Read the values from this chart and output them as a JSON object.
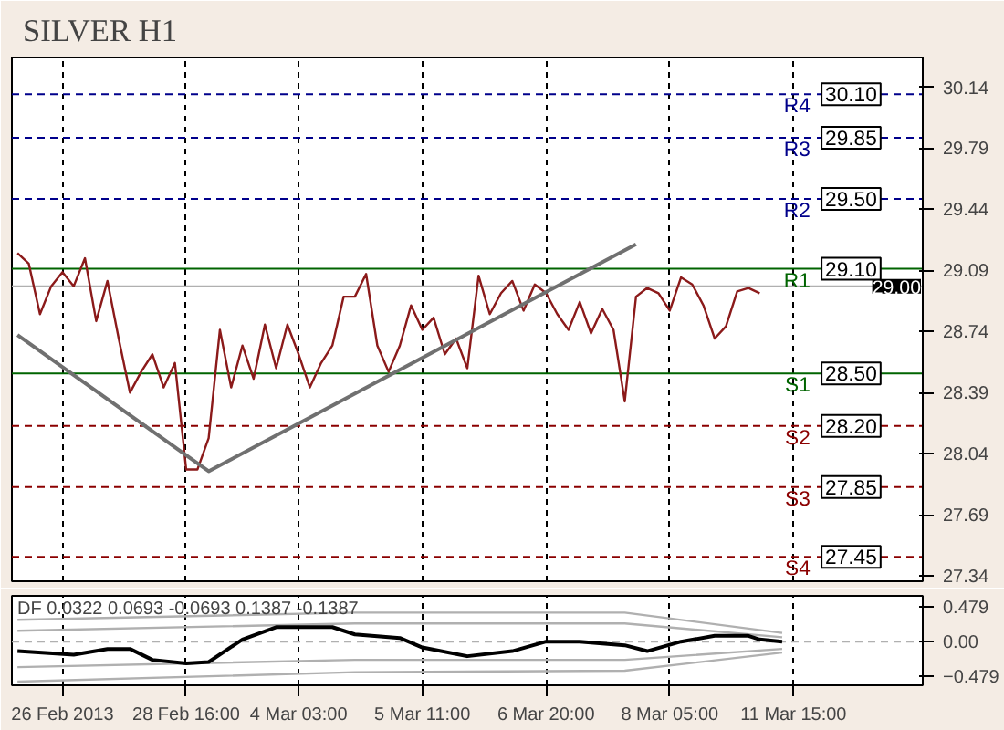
{
  "chart_data": [
    {
      "type": "line",
      "title": "SILVER H1",
      "ylim": [
        27.31,
        30.31
      ],
      "categories": [
        null,
        null,
        null,
        null,
        null,
        null,
        null,
        null,
        null,
        null,
        null,
        null,
        null,
        null,
        null,
        null,
        null,
        null,
        null,
        null,
        null,
        null,
        null,
        null,
        null,
        null,
        null,
        null,
        null,
        null,
        null,
        null,
        null,
        null,
        null,
        null,
        null,
        null,
        null,
        null,
        null,
        null,
        null,
        null,
        null,
        null,
        null,
        null,
        null,
        null,
        null,
        null,
        null,
        null,
        null,
        null,
        null,
        null,
        null,
        null,
        null,
        null,
        null,
        null,
        null,
        null,
        null,
        null,
        null,
        null,
        null,
        null,
        null,
        null,
        null,
        null,
        null,
        null,
        null,
        null,
        null
      ],
      "yticks": [
        30.14,
        29.79,
        29.44,
        29.09,
        28.74,
        28.39,
        28.04,
        27.69,
        27.34
      ],
      "grid": "x",
      "series": [
        {
          "color": "#8b1a1a",
          "values": [
            29.19,
            29.13,
            28.84,
            29.0,
            29.08,
            29.0,
            29.16,
            28.8,
            29.03,
            28.7,
            28.39,
            28.51,
            28.61,
            28.42,
            28.56,
            27.95,
            27.95,
            28.13,
            28.75,
            28.42,
            28.66,
            28.47,
            28.78,
            28.53,
            28.78,
            28.61,
            28.42,
            28.56,
            28.66,
            28.94,
            28.94,
            29.07,
            28.66,
            28.51,
            28.66,
            28.89,
            28.75,
            28.82,
            28.61,
            28.7,
            28.53,
            29.06,
            28.84,
            28.96,
            29.03,
            28.86,
            29.01,
            28.96,
            28.84,
            28.75,
            28.91,
            28.73,
            28.87,
            28.75,
            28.34,
            28.94,
            28.99,
            28.96,
            28.86,
            29.05,
            29.01,
            28.89,
            28.7,
            28.77,
            28.97,
            28.99,
            28.96,
            null,
            null,
            null,
            null,
            null,
            null,
            null,
            null,
            null,
            null,
            null,
            null,
            null,
            null
          ]
        },
        {
          "color": "#707070",
          "values": [
            28.72,
            null,
            null,
            null,
            null,
            null,
            null,
            null,
            null,
            null,
            null,
            null,
            null,
            null,
            null,
            null,
            null,
            27.94,
            null,
            null,
            null,
            null,
            null,
            null,
            null,
            null,
            null,
            null,
            null,
            null,
            null,
            null,
            null,
            null,
            null,
            null,
            null,
            null,
            null,
            null,
            null,
            null,
            null,
            null,
            null,
            null,
            null,
            null,
            null,
            null,
            null,
            null,
            null,
            null,
            null,
            29.24,
            null,
            null,
            null,
            null,
            null,
            null,
            null,
            null,
            null,
            null,
            null,
            null,
            null,
            null,
            null,
            null,
            null,
            null,
            null,
            null,
            null,
            null,
            null,
            null,
            null
          ]
        }
      ],
      "ref_lines": [
        {
          "axis": "y",
          "value": 30.1,
          "label": "R4",
          "color": "#00008b",
          "line_style": "dashed"
        },
        {
          "axis": "y",
          "value": 29.85,
          "label": "R3",
          "color": "#00008b",
          "line_style": "dashed"
        },
        {
          "axis": "y",
          "value": 29.5,
          "label": "R2",
          "color": "#00008b",
          "line_style": "dashed"
        },
        {
          "axis": "y",
          "value": 29.1,
          "label": "R1",
          "color": "#006400",
          "line_style": "solid"
        },
        {
          "axis": "y",
          "value": 29.0,
          "label": "29.00",
          "color": "#b0b0b0",
          "line_style": "solid"
        },
        {
          "axis": "y",
          "value": 28.5,
          "label": "S1",
          "color": "#006400",
          "line_style": "solid"
        },
        {
          "axis": "y",
          "value": 28.2,
          "label": "S2",
          "color": "#8b0000",
          "line_style": "dashed"
        },
        {
          "axis": "y",
          "value": 27.85,
          "label": "S3",
          "color": "#8b0000",
          "line_style": "dashed"
        },
        {
          "axis": "y",
          "value": 27.45,
          "label": "S4",
          "color": "#8b0000",
          "line_style": "dashed"
        }
      ],
      "annotations": [
        {
          "text": "30.10",
          "y": 30.1
        },
        {
          "text": "29.85",
          "y": 29.85
        },
        {
          "text": "29.50",
          "y": 29.5
        },
        {
          "text": "29.10",
          "y": 29.1
        },
        {
          "text": "28.50",
          "y": 28.5
        },
        {
          "text": "28.20",
          "y": 28.2
        },
        {
          "text": "27.85",
          "y": 27.85
        },
        {
          "text": "27.45",
          "y": 27.45
        }
      ]
    },
    {
      "type": "line",
      "ylim": [
        -0.6,
        0.63
      ],
      "categories": [
        null,
        null,
        null,
        null,
        "26 Feb 2013",
        null,
        null,
        null,
        null,
        null,
        null,
        null,
        null,
        null,
        null,
        "28 Feb 16:00",
        null,
        null,
        null,
        null,
        null,
        null,
        null,
        null,
        null,
        "4 Mar 03:00",
        null,
        null,
        null,
        null,
        null,
        null,
        null,
        null,
        null,
        null,
        "5 Mar 11:00",
        null,
        null,
        null,
        null,
        null,
        null,
        null,
        null,
        null,
        null,
        "6 Mar 20:00",
        null,
        null,
        null,
        null,
        null,
        null,
        null,
        null,
        null,
        null,
        "8 Mar 05:00",
        null,
        null,
        null,
        null,
        null,
        null,
        null,
        null,
        null,
        null,
        "11 Mar 15:00",
        null,
        null,
        null,
        null,
        null,
        null,
        null,
        null,
        null,
        null,
        null
      ],
      "yticks": [
        0.479,
        {
          "value": 0,
          "label": "0.00"
        },
        -0.479
      ],
      "grid": "x",
      "annotations": [
        "DF 0.0322 0.0693 -0.0693 0.1387 -0.1387"
      ],
      "series": [
        {
          "color": "#b0b0b0",
          "values": [
            0.3,
            null,
            null,
            null,
            null,
            null,
            null,
            null,
            null,
            null,
            null,
            null,
            null,
            null,
            null,
            null,
            null,
            null,
            null,
            null,
            null,
            null,
            null,
            null,
            null,
            null,
            null,
            null,
            null,
            null,
            0.4,
            null,
            null,
            null,
            null,
            null,
            null,
            null,
            null,
            null,
            null,
            null,
            null,
            null,
            null,
            null,
            null,
            null,
            null,
            null,
            null,
            null,
            null,
            null,
            0.4,
            null,
            null,
            null,
            null,
            null,
            null,
            null,
            null,
            null,
            null,
            null,
            null,
            null,
            0.12,
            null,
            null,
            null,
            null,
            null,
            null,
            null,
            null,
            null,
            null,
            null,
            null
          ]
        },
        {
          "color": "#b0b0b0",
          "values": [
            0.15,
            null,
            null,
            null,
            null,
            null,
            null,
            null,
            null,
            null,
            null,
            null,
            null,
            null,
            null,
            null,
            null,
            null,
            null,
            null,
            null,
            null,
            null,
            null,
            null,
            null,
            null,
            null,
            null,
            null,
            0.25,
            null,
            null,
            null,
            null,
            null,
            null,
            null,
            null,
            null,
            null,
            null,
            null,
            null,
            null,
            null,
            null,
            null,
            null,
            null,
            null,
            null,
            null,
            null,
            0.25,
            null,
            null,
            null,
            null,
            null,
            null,
            null,
            null,
            null,
            null,
            null,
            null,
            null,
            0.06,
            null,
            null,
            null,
            null,
            null,
            null,
            null,
            null,
            null,
            null,
            null,
            null
          ]
        },
        {
          "color": "#b0b0b0",
          "values": [
            -0.35,
            null,
            null,
            null,
            null,
            null,
            null,
            null,
            null,
            null,
            null,
            null,
            null,
            null,
            null,
            null,
            null,
            null,
            null,
            null,
            null,
            null,
            null,
            null,
            null,
            null,
            null,
            null,
            null,
            null,
            -0.25,
            null,
            null,
            null,
            null,
            null,
            null,
            null,
            null,
            null,
            null,
            null,
            null,
            null,
            null,
            null,
            null,
            null,
            null,
            null,
            null,
            null,
            null,
            null,
            -0.25,
            null,
            null,
            null,
            null,
            null,
            null,
            null,
            null,
            null,
            null,
            null,
            null,
            null,
            -0.1,
            null,
            null,
            null,
            null,
            null,
            null,
            null,
            null,
            null,
            null,
            null,
            null
          ]
        },
        {
          "color": "#b0b0b0",
          "values": [
            -0.55,
            null,
            null,
            null,
            null,
            null,
            null,
            null,
            null,
            null,
            null,
            null,
            null,
            null,
            null,
            null,
            null,
            null,
            null,
            null,
            null,
            null,
            null,
            null,
            null,
            null,
            null,
            null,
            null,
            null,
            -0.42,
            null,
            null,
            null,
            null,
            null,
            null,
            null,
            null,
            null,
            null,
            null,
            null,
            null,
            null,
            null,
            null,
            null,
            null,
            null,
            null,
            null,
            null,
            null,
            -0.4,
            null,
            null,
            null,
            null,
            null,
            null,
            null,
            null,
            null,
            null,
            null,
            null,
            null,
            -0.15,
            null,
            null,
            null,
            null,
            null,
            null,
            null,
            null,
            null,
            null,
            null,
            null
          ]
        },
        {
          "color": "#000000",
          "values": [
            -0.13,
            null,
            null,
            null,
            null,
            -0.18,
            null,
            null,
            -0.1,
            null,
            -0.1,
            null,
            -0.25,
            null,
            null,
            -0.3,
            null,
            -0.28,
            null,
            null,
            0.03,
            null,
            null,
            0.2,
            null,
            null,
            null,
            null,
            0.2,
            null,
            0.1,
            null,
            null,
            null,
            0.05,
            null,
            -0.08,
            null,
            null,
            null,
            -0.2,
            null,
            null,
            null,
            -0.13,
            null,
            null,
            0.0,
            null,
            null,
            0.0,
            null,
            null,
            null,
            -0.05,
            null,
            -0.13,
            null,
            null,
            0.0,
            null,
            null,
            0.08,
            null,
            null,
            0.08,
            0.03,
            null,
            0.0,
            null,
            null,
            null,
            null,
            null,
            null,
            null,
            null,
            null,
            null,
            null,
            null
          ]
        }
      ],
      "ref_lines": [
        {
          "axis": "y",
          "value": 0,
          "color": "#b0b0b0",
          "line_style": "dashed"
        }
      ]
    }
  ]
}
